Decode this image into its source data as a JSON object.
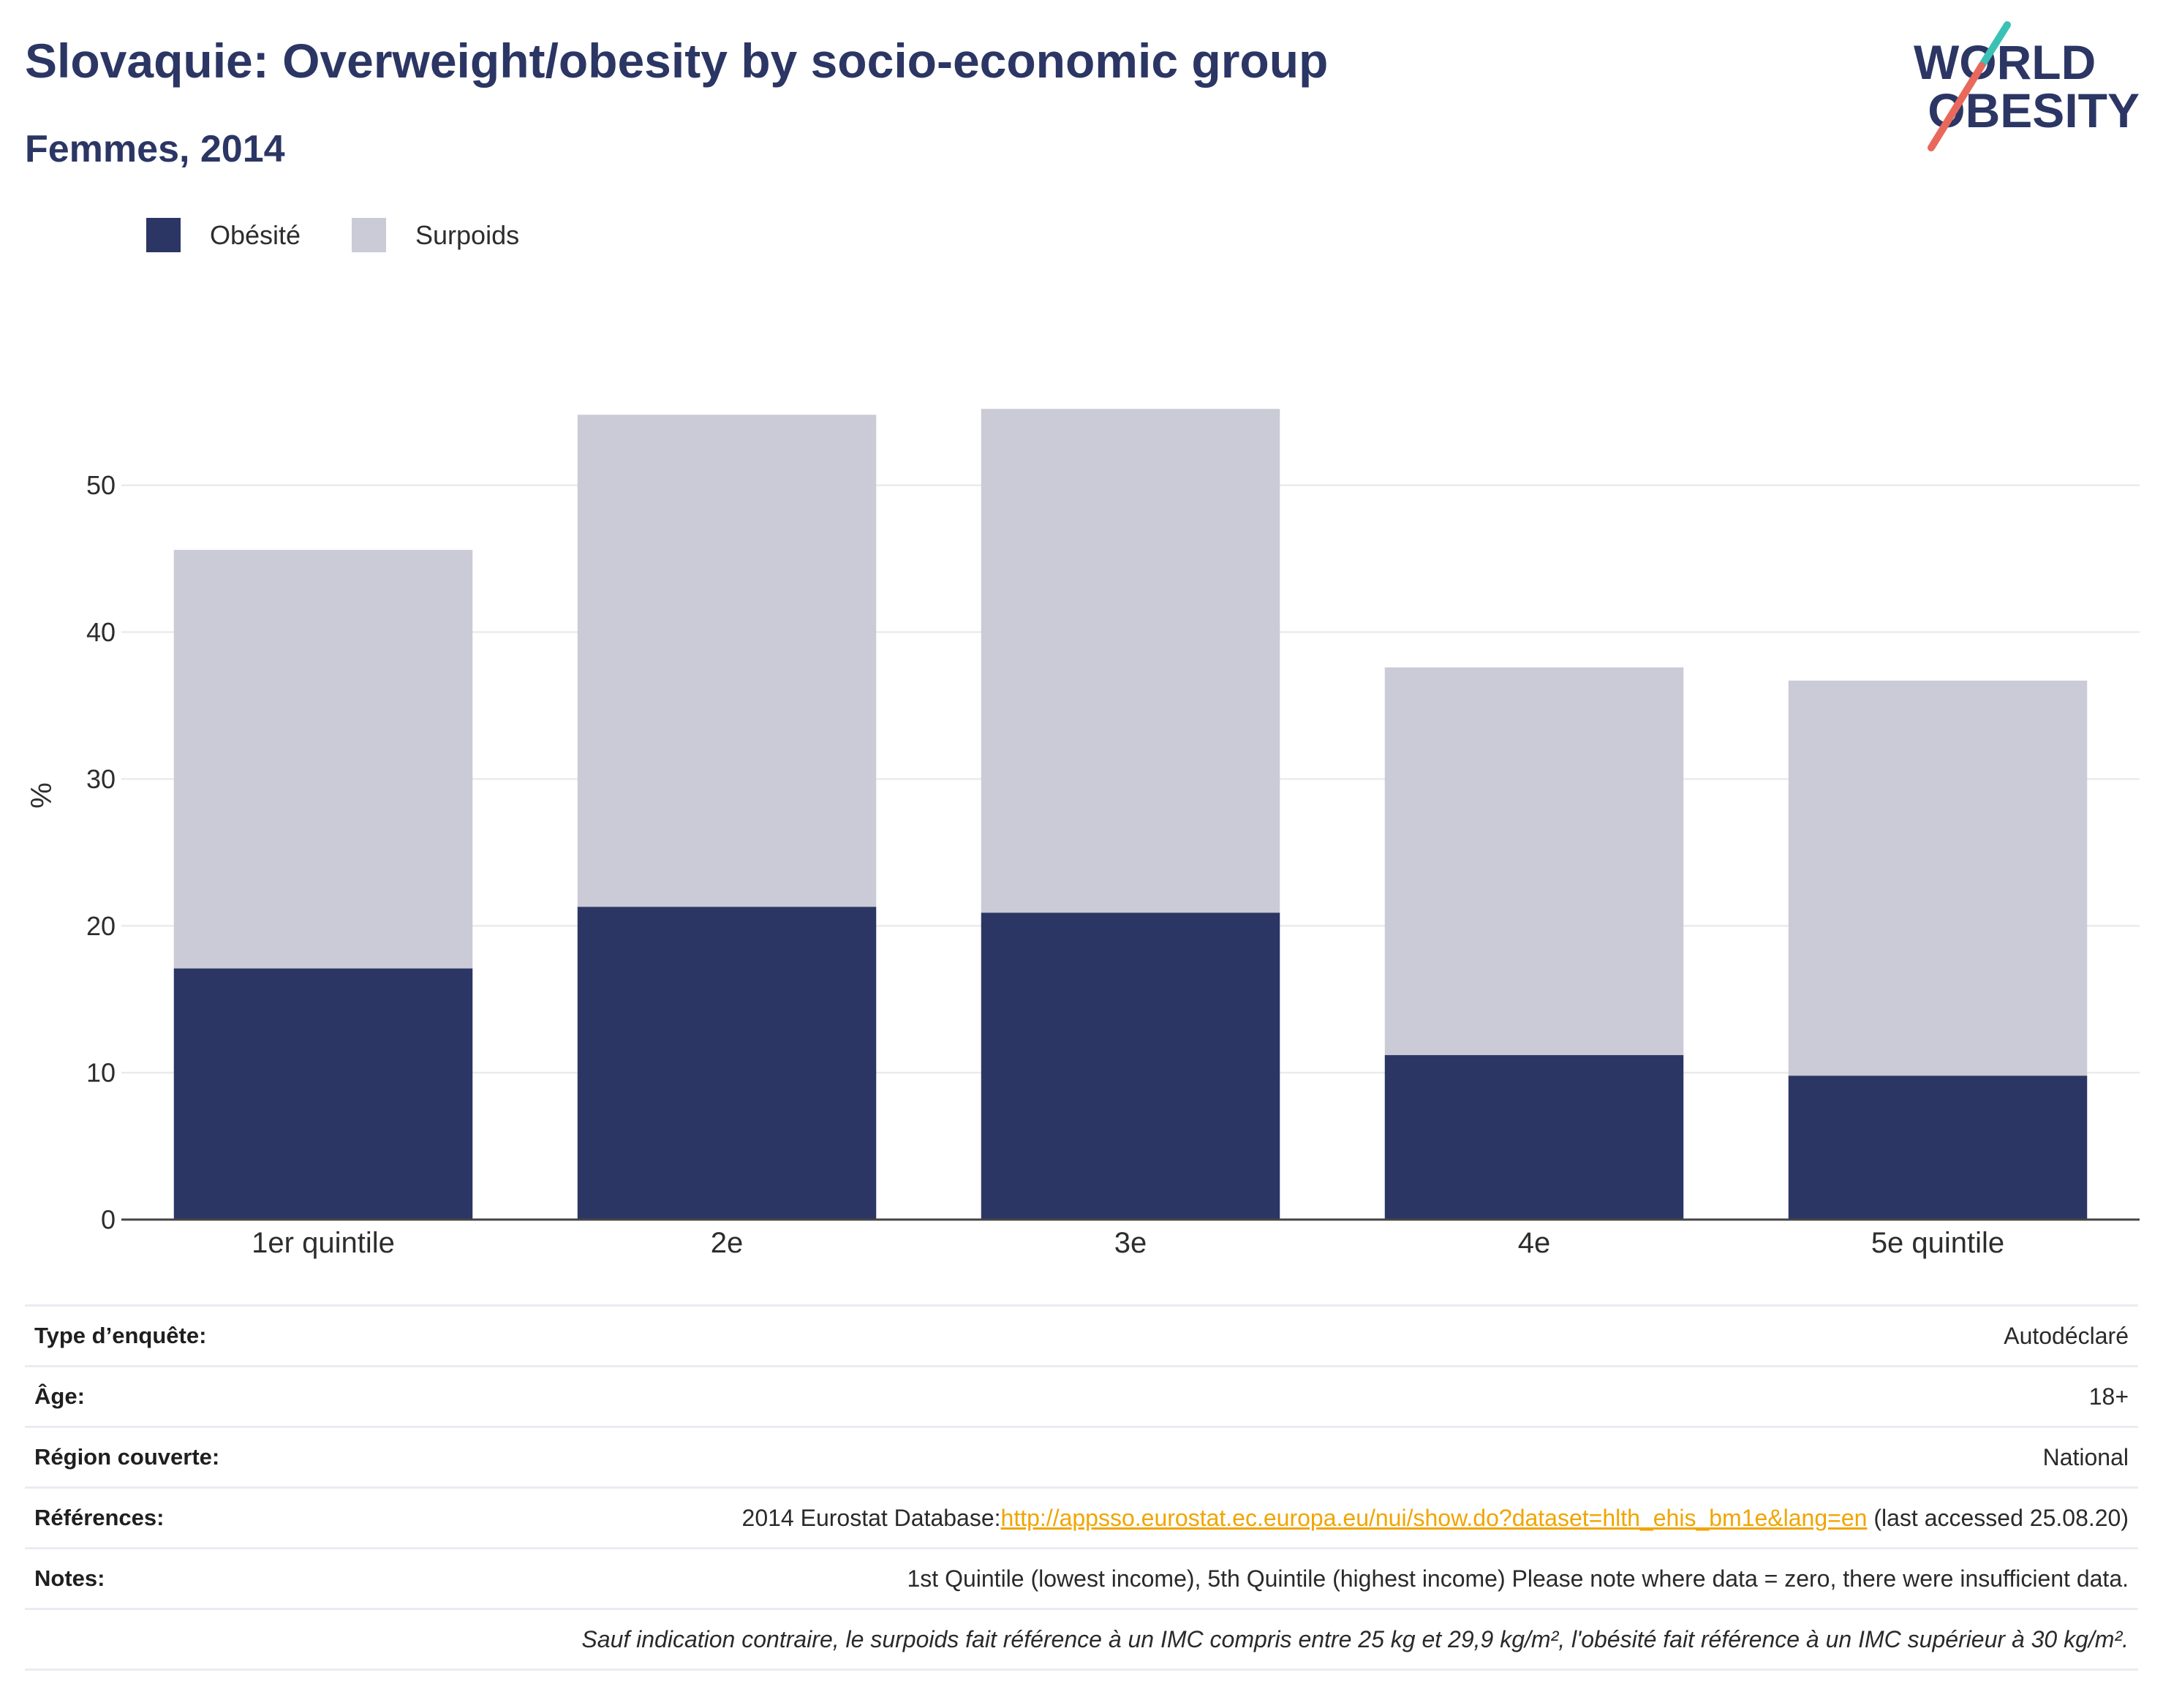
{
  "header": {
    "title": "Slovaquie: Overweight/obesity by socio-economic group",
    "subtitle": "Femmes, 2014"
  },
  "logo": {
    "line1": "WORLD",
    "line2": "OBESITY"
  },
  "colors": {
    "brand": "#2b3664",
    "link": "#f0a500",
    "logo_accent_top": "#3cc1b5",
    "logo_accent_bottom": "#e8695c",
    "gridline": "#ebebeb",
    "axis": "#444444"
  },
  "chart_data": {
    "type": "bar",
    "stacked": true,
    "categories": [
      "1er quintile",
      "2e",
      "3e",
      "4e",
      "5e quintile"
    ],
    "series": [
      {
        "name": "Obésité",
        "values": [
          17.1,
          21.3,
          20.9,
          11.2,
          9.8
        ],
        "color": "#2b3664"
      },
      {
        "name": "Surpoids",
        "values": [
          28.5,
          33.5,
          34.3,
          26.4,
          26.9
        ],
        "color": "#cacbd6"
      }
    ],
    "xlabel": "",
    "ylabel": "%",
    "ylim": [
      0,
      58
    ],
    "yticks": [
      0,
      10,
      20,
      30,
      40,
      50
    ],
    "grid": true,
    "legend": "top-left"
  },
  "info": {
    "survey_type": {
      "label": "Type d’enquête:",
      "value": "Autodéclaré"
    },
    "age": {
      "label": "Âge:",
      "value": "18+"
    },
    "region": {
      "label": "Région couverte:",
      "value": "National"
    },
    "references": {
      "label": "Références:",
      "prefix": "2014 Eurostat Database:",
      "link": "http://appsso.eurostat.ec.europa.eu/nui/show.do?dataset=hlth_ehis_bm1e&lang=en",
      "suffix": "(last accessed 25.08.20)"
    },
    "notes": {
      "label": "Notes:",
      "value": "1st Quintile (lowest income), 5th Quintile (highest income) Please note where data = zero, there were insufficient data."
    },
    "definition": "Sauf indication contraire, le surpoids fait référence à un IMC compris entre 25 kg et 29,9 kg/m², l'obésité fait référence à un IMC supérieur à 30 kg/m²."
  }
}
